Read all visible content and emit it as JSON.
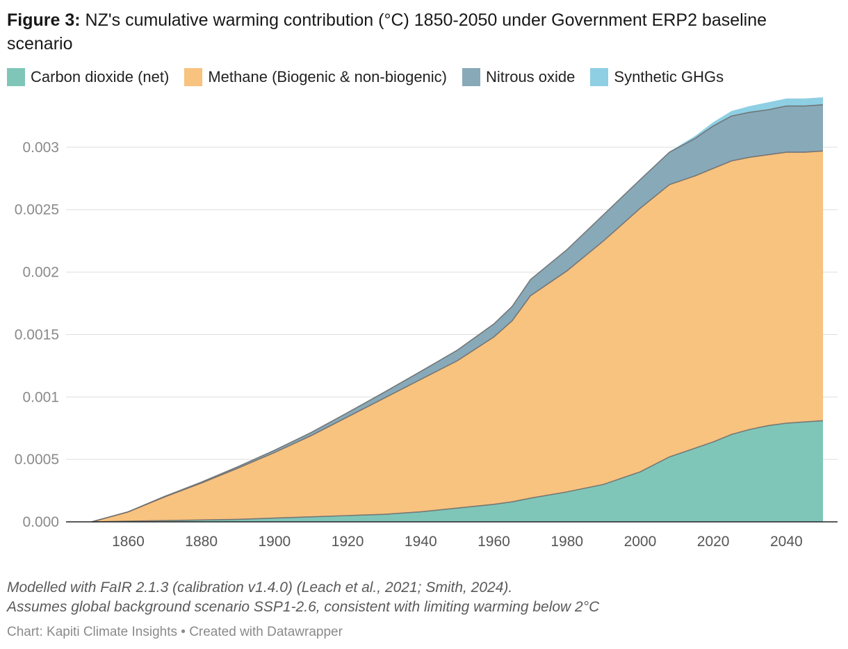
{
  "header": {
    "title_prefix": "Figure 3:",
    "title_text": " NZ's cumulative warming contribution (°C) 1850-2050 under Government ERP2 baseline scenario"
  },
  "legend": [
    {
      "label": "Carbon dioxide (net)",
      "color": "#7fc6b9"
    },
    {
      "label": "Methane (Biogenic & non-biogenic)",
      "color": "#f8c27f"
    },
    {
      "label": "Nitrous oxide",
      "color": "#88a9b8"
    },
    {
      "label": "Synthetic GHGs",
      "color": "#8ecfe3"
    }
  ],
  "footer": {
    "note1": "Modelled with FaIR 2.1.3 (calibration v1.4.0) (Leach et al., 2021; Smith, 2024).",
    "note2": "Assumes global background scenario SSP1-2.6, consistent with limiting warming below 2°C",
    "credit": "Chart: Kapiti Climate Insights • Created with Datawrapper"
  },
  "chart_data": {
    "type": "area",
    "stacked": true,
    "x": [
      1850,
      1860,
      1870,
      1880,
      1890,
      1900,
      1910,
      1920,
      1930,
      1940,
      1950,
      1960,
      1965,
      1970,
      1980,
      1990,
      2000,
      2008,
      2015,
      2020,
      2025,
      2030,
      2035,
      2040,
      2045,
      2050
    ],
    "series": [
      {
        "name": "Carbon dioxide (net)",
        "color": "#7fc6b9",
        "values": [
          0,
          5e-06,
          1e-05,
          1.5e-05,
          2e-05,
          3e-05,
          4e-05,
          5e-05,
          6e-05,
          8e-05,
          0.00011,
          0.00014,
          0.00016,
          0.00019,
          0.00024,
          0.0003,
          0.0004,
          0.00052,
          0.00059,
          0.00064,
          0.0007,
          0.00074,
          0.00077,
          0.00079,
          0.0008,
          0.00081
        ]
      },
      {
        "name": "Methane (Biogenic & non-biogenic)",
        "color": "#f8c27f",
        "values": [
          0,
          7.5e-05,
          0.00019,
          0.000295,
          0.00041,
          0.000525,
          0.00065,
          0.00079,
          0.00093,
          0.00106,
          0.00118,
          0.00134,
          0.00145,
          0.00162,
          0.00177,
          0.00195,
          0.00211,
          0.00218,
          0.00218,
          0.00219,
          0.00219,
          0.00218,
          0.00217,
          0.00217,
          0.00216,
          0.00216
        ]
      },
      {
        "name": "Nitrous oxide",
        "color": "#88a9b8",
        "values": [
          0,
          0,
          4e-06,
          8e-06,
          1.2e-05,
          1.8e-05,
          2.5e-05,
          3.5e-05,
          4.8e-05,
          6.5e-05,
          8.5e-05,
          0.000105,
          0.000115,
          0.00013,
          0.00017,
          0.00021,
          0.00023,
          0.00026,
          0.0003,
          0.00034,
          0.00036,
          0.00036,
          0.00036,
          0.00037,
          0.00037,
          0.00037
        ]
      },
      {
        "name": "Synthetic GHGs",
        "color": "#8ecfe3",
        "values": [
          0,
          0,
          0,
          0,
          0,
          0,
          0,
          0,
          0,
          0,
          0,
          0,
          0,
          0,
          0,
          0,
          0,
          5e-06,
          2e-05,
          3e-05,
          4e-05,
          5e-05,
          6e-05,
          6e-05,
          6e-05,
          6e-05
        ]
      }
    ],
    "ylim": [
      0,
      0.0034
    ],
    "xlim": [
      1843,
      2054
    ],
    "yticks": [
      "0.000",
      "0.0005",
      "0.001",
      "0.0015",
      "0.002",
      "0.0025",
      "0.003"
    ],
    "ytick_values": [
      0,
      0.0005,
      0.001,
      0.0015,
      0.002,
      0.0025,
      0.003
    ],
    "xticks": [
      1860,
      1880,
      1900,
      1920,
      1940,
      1960,
      1980,
      2000,
      2020,
      2040
    ],
    "grid": true
  }
}
